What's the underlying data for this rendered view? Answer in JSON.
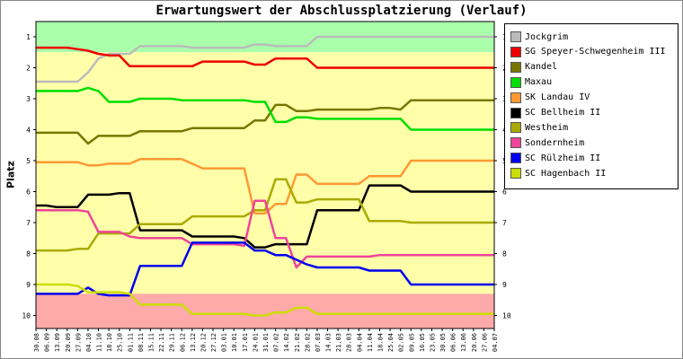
{
  "chart_data": {
    "type": "line",
    "title": "Erwartungswert der Abschlussplatzierung (Verlauf)",
    "ylabel": "Platz",
    "xlabel": "",
    "ylim": [
      1,
      10
    ],
    "y_ticks": [
      "1",
      "2",
      "3",
      "4",
      "5",
      "6",
      "7",
      "8",
      "9",
      "10"
    ],
    "y_inverted": true,
    "legend_position": "right",
    "zones": [
      {
        "from": 0.5,
        "to": 1.5,
        "color": "#aaffaa"
      },
      {
        "from": 1.5,
        "to": 9.3,
        "color": "#ffffaa"
      },
      {
        "from": 9.3,
        "to": 10.5,
        "color": "#ffaaaa"
      }
    ],
    "categories": [
      "30.08",
      "06.09",
      "13.09",
      "20.09",
      "27.09",
      "04.10",
      "11.10",
      "18.10",
      "25.10",
      "01.11",
      "08.11",
      "15.11",
      "22.11",
      "29.11",
      "06.12",
      "13.12",
      "20.12",
      "27.12",
      "03.01",
      "10.01",
      "17.01",
      "24.01",
      "31.01",
      "07.02",
      "14.02",
      "21.02",
      "28.02",
      "07.03",
      "14.03",
      "21.03",
      "28.03",
      "04.04",
      "11.04",
      "18.04",
      "25.04",
      "02.05",
      "09.05",
      "16.05",
      "23.05",
      "30.05",
      "06.06",
      "13.06",
      "20.06",
      "27.06",
      "04.07"
    ],
    "series": [
      {
        "name": "Jockgrim",
        "color": "#bbbbbb",
        "values": [
          2.45,
          2.45,
          2.45,
          2.45,
          2.45,
          2.15,
          1.7,
          1.55,
          1.55,
          1.55,
          1.3,
          1.3,
          1.3,
          1.3,
          1.3,
          1.35,
          1.35,
          1.35,
          1.35,
          1.35,
          1.35,
          1.25,
          1.25,
          1.3,
          1.3,
          1.3,
          1.3,
          1.0,
          1.0,
          1.0,
          1.0,
          1.0,
          1.0,
          1.0,
          1.0,
          1.0,
          1.0,
          1.0,
          1.0,
          1.0,
          1.0,
          1.0,
          1.0,
          1.0,
          1.0
        ]
      },
      {
        "name": "SG Speyer-Schwegenheim III",
        "color": "#ee0000",
        "values": [
          1.35,
          1.35,
          1.35,
          1.35,
          1.4,
          1.45,
          1.55,
          1.6,
          1.6,
          1.95,
          1.95,
          1.95,
          1.95,
          1.95,
          1.95,
          1.95,
          1.8,
          1.8,
          1.8,
          1.8,
          1.8,
          1.9,
          1.9,
          1.7,
          1.7,
          1.7,
          1.7,
          2.0,
          2.0,
          2.0,
          2.0,
          2.0,
          2.0,
          2.0,
          2.0,
          2.0,
          2.0,
          2.0,
          2.0,
          2.0,
          2.0,
          2.0,
          2.0,
          2.0,
          2.0
        ]
      },
      {
        "name": "Kandel",
        "color": "#777700",
        "values": [
          4.1,
          4.1,
          4.1,
          4.1,
          4.1,
          4.45,
          4.2,
          4.2,
          4.2,
          4.2,
          4.05,
          4.05,
          4.05,
          4.05,
          4.05,
          3.95,
          3.95,
          3.95,
          3.95,
          3.95,
          3.95,
          3.7,
          3.7,
          3.2,
          3.2,
          3.4,
          3.4,
          3.35,
          3.35,
          3.35,
          3.35,
          3.35,
          3.35,
          3.3,
          3.3,
          3.35,
          3.05,
          3.05,
          3.05,
          3.05,
          3.05,
          3.05,
          3.05,
          3.05,
          3.05
        ]
      },
      {
        "name": "Maxau",
        "color": "#00dd00",
        "values": [
          2.75,
          2.75,
          2.75,
          2.75,
          2.75,
          2.65,
          2.75,
          3.1,
          3.1,
          3.1,
          3.0,
          3.0,
          3.0,
          3.0,
          3.05,
          3.05,
          3.05,
          3.05,
          3.05,
          3.05,
          3.05,
          3.1,
          3.1,
          3.75,
          3.75,
          3.6,
          3.6,
          3.65,
          3.65,
          3.65,
          3.65,
          3.65,
          3.65,
          3.65,
          3.65,
          3.65,
          4.0,
          4.0,
          4.0,
          4.0,
          4.0,
          4.0,
          4.0,
          4.0,
          4.0
        ]
      },
      {
        "name": "SK Landau IV",
        "color": "#ff9933",
        "values": [
          5.05,
          5.05,
          5.05,
          5.05,
          5.05,
          5.15,
          5.15,
          5.1,
          5.1,
          5.1,
          4.95,
          4.95,
          4.95,
          4.95,
          4.95,
          5.1,
          5.25,
          5.25,
          5.25,
          5.25,
          5.25,
          6.7,
          6.7,
          6.4,
          6.4,
          5.45,
          5.45,
          5.75,
          5.75,
          5.75,
          5.75,
          5.75,
          5.5,
          5.5,
          5.5,
          5.5,
          5.0,
          5.0,
          5.0,
          5.0,
          5.0,
          5.0,
          5.0,
          5.0,
          5.0
        ]
      },
      {
        "name": "SC Bellheim II",
        "color": "#000000",
        "values": [
          6.45,
          6.45,
          6.5,
          6.5,
          6.5,
          6.1,
          6.1,
          6.1,
          6.05,
          6.05,
          7.25,
          7.25,
          7.25,
          7.25,
          7.25,
          7.45,
          7.45,
          7.45,
          7.45,
          7.45,
          7.5,
          7.8,
          7.8,
          7.7,
          7.7,
          7.7,
          7.7,
          6.6,
          6.6,
          6.6,
          6.6,
          6.6,
          5.8,
          5.8,
          5.8,
          5.8,
          6.0,
          6.0,
          6.0,
          6.0,
          6.0,
          6.0,
          6.0,
          6.0,
          6.0
        ]
      },
      {
        "name": "Westheim",
        "color": "#aaaa00",
        "values": [
          7.9,
          7.9,
          7.9,
          7.9,
          7.85,
          7.85,
          7.35,
          7.35,
          7.35,
          7.35,
          7.05,
          7.05,
          7.05,
          7.05,
          7.05,
          6.8,
          6.8,
          6.8,
          6.8,
          6.8,
          6.8,
          6.6,
          6.6,
          5.6,
          5.6,
          6.35,
          6.35,
          6.25,
          6.25,
          6.25,
          6.25,
          6.25,
          6.95,
          6.95,
          6.95,
          6.95,
          7.0,
          7.0,
          7.0,
          7.0,
          7.0,
          7.0,
          7.0,
          7.0,
          7.0
        ]
      },
      {
        "name": "Sondernheim",
        "color": "#ee4499",
        "values": [
          6.6,
          6.6,
          6.6,
          6.6,
          6.6,
          6.65,
          7.3,
          7.3,
          7.3,
          7.45,
          7.5,
          7.5,
          7.5,
          7.5,
          7.5,
          7.7,
          7.7,
          7.7,
          7.7,
          7.7,
          7.75,
          6.3,
          6.3,
          7.5,
          7.5,
          8.45,
          8.1,
          8.1,
          8.1,
          8.1,
          8.1,
          8.1,
          8.1,
          8.05,
          8.05,
          8.05,
          8.05,
          8.05,
          8.05,
          8.05,
          8.05,
          8.05,
          8.05,
          8.05,
          8.05
        ]
      },
      {
        "name": "SC Rülzheim II",
        "color": "#0000ee",
        "values": [
          9.3,
          9.3,
          9.3,
          9.3,
          9.3,
          9.1,
          9.3,
          9.35,
          9.35,
          9.35,
          8.4,
          8.4,
          8.4,
          8.4,
          8.4,
          7.65,
          7.65,
          7.65,
          7.65,
          7.65,
          7.65,
          7.9,
          7.9,
          8.05,
          8.05,
          8.2,
          8.35,
          8.45,
          8.45,
          8.45,
          8.45,
          8.45,
          8.55,
          8.55,
          8.55,
          8.55,
          9.0,
          9.0,
          9.0,
          9.0,
          9.0,
          9.0,
          9.0,
          9.0,
          9.0
        ]
      },
      {
        "name": "SC Hagenbach II",
        "color": "#ccdd00",
        "values": [
          9.0,
          9.0,
          9.0,
          9.0,
          9.05,
          9.25,
          9.25,
          9.25,
          9.25,
          9.3,
          9.65,
          9.65,
          9.65,
          9.65,
          9.65,
          9.95,
          9.95,
          9.95,
          9.95,
          9.95,
          9.95,
          10.0,
          10.0,
          9.9,
          9.9,
          9.75,
          9.75,
          9.95,
          9.95,
          9.95,
          9.95,
          9.95,
          9.95,
          9.95,
          9.95,
          9.95,
          9.95,
          9.95,
          9.95,
          9.95,
          9.95,
          9.95,
          9.95,
          9.95,
          9.95
        ]
      }
    ]
  }
}
